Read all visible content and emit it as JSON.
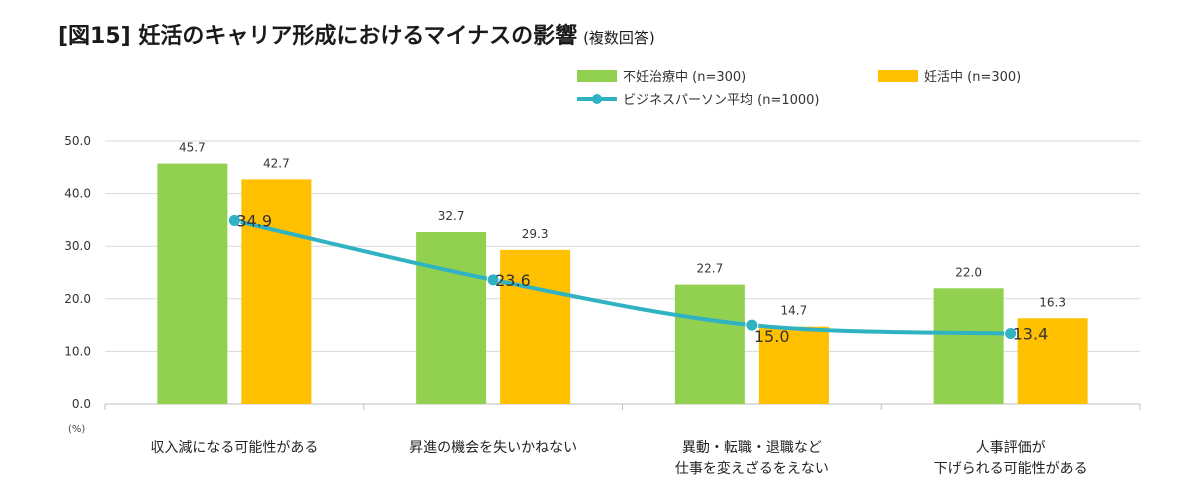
{
  "title": "[図15] 妊活のキャリア形成におけるマイナスの影響",
  "subtitle": "(複数回答)",
  "chart_data": {
    "type": "bar",
    "categories": [
      [
        "収入減になる可能性がある"
      ],
      [
        "昇進の機会を失いかねない"
      ],
      [
        "異動・転職・退職など",
        "仕事を変えざるをえない"
      ],
      [
        "人事評価が",
        "下げられる可能性がある"
      ]
    ],
    "series": [
      {
        "name": "不妊治療中 (n=300)",
        "type": "bar",
        "color": "#92d050",
        "values": [
          45.7,
          32.7,
          22.7,
          22.0
        ]
      },
      {
        "name": "妊活中 (n=300)",
        "type": "bar",
        "color": "#ffc000",
        "values": [
          42.7,
          29.3,
          14.7,
          16.3
        ]
      },
      {
        "name": "ビジネスパーソン平均 (n=1000)",
        "type": "line",
        "color": "#2fb3c2",
        "values": [
          34.9,
          23.6,
          15.0,
          13.4
        ]
      }
    ],
    "ylim": [
      0,
      50
    ],
    "yticks": [
      "0.0",
      "10.0",
      "20.0",
      "30.0",
      "40.0",
      "50.0"
    ],
    "ytick_values": [
      0,
      10,
      20,
      30,
      40,
      50
    ],
    "yunit": "(%)",
    "grid": true,
    "legend_position": "top-center"
  }
}
